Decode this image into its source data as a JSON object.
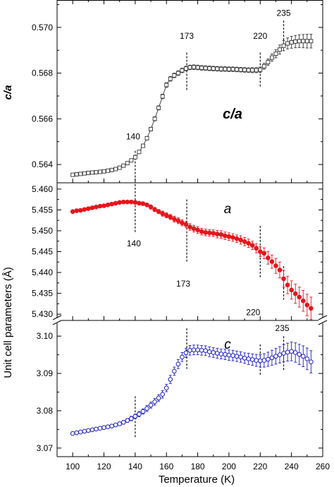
{
  "chart_data": [
    {
      "type": "scatter",
      "panel": "top",
      "ylabel": "c/a",
      "panel_label": "c/a",
      "ylim": [
        0.5632,
        0.5712
      ],
      "yticks": [
        "0.564",
        "0.566",
        "0.568",
        "0.570"
      ],
      "ytick_values": [
        0.564,
        0.566,
        0.568,
        0.57
      ],
      "marker": "open-square",
      "color": "#333333",
      "connected": true,
      "series": [
        {
          "x": [
            100,
            102.5,
            105,
            107.5,
            110,
            112.5,
            115,
            117.5,
            120,
            122.5,
            125,
            127.5,
            130,
            132.5,
            135,
            137.5,
            140,
            142.5,
            145,
            147.5,
            150,
            152.5,
            155,
            157.5,
            160,
            162.5,
            165,
            167.5,
            170,
            172.5,
            175,
            177.5,
            180,
            182.5,
            185,
            187.5,
            190,
            192.5,
            195,
            197.5,
            200,
            202.5,
            205,
            207.5,
            210,
            212.5,
            215,
            217.5,
            220,
            222.5,
            225,
            227.5,
            230,
            232.5,
            235,
            237.5,
            240,
            242.5,
            245,
            247.5,
            250,
            252.5
          ],
          "y": [
            0.56355,
            0.56357,
            0.56359,
            0.56361,
            0.56363,
            0.56365,
            0.56366,
            0.56368,
            0.5637,
            0.56373,
            0.56376,
            0.5638,
            0.56386,
            0.56395,
            0.56406,
            0.56418,
            0.56432,
            0.56455,
            0.56482,
            0.56515,
            0.56555,
            0.566,
            0.56648,
            0.56698,
            0.56748,
            0.56775,
            0.5679,
            0.568,
            0.56812,
            0.5682,
            0.56825,
            0.56826,
            0.56825,
            0.56823,
            0.56822,
            0.56821,
            0.5682,
            0.56819,
            0.56818,
            0.56818,
            0.56817,
            0.56817,
            0.56816,
            0.56815,
            0.56814,
            0.56813,
            0.56813,
            0.56813,
            0.56815,
            0.5683,
            0.56848,
            0.56868,
            0.56885,
            0.56903,
            0.5692,
            0.5693,
            0.56935,
            0.56938,
            0.5694,
            0.5694,
            0.5694,
            0.5694
          ],
          "err": [
            4e-05,
            4e-05,
            4e-05,
            4e-05,
            4e-05,
            4e-05,
            4e-05,
            4e-05,
            4e-05,
            4e-05,
            4e-05,
            5e-05,
            5e-05,
            5e-05,
            6e-05,
            6e-05,
            6e-05,
            7e-05,
            7e-05,
            8e-05,
            8e-05,
            9e-05,
            9e-05,
            0.0001,
            0.0001,
            0.0001,
            0.0001,
            0.0001,
            0.0001,
            0.0001,
            0.0001,
            0.0001,
            0.0001,
            0.0001,
            0.0001,
            0.0001,
            0.0001,
            0.0001,
            0.0001,
            0.0001,
            0.0001,
            0.0001,
            0.0001,
            0.0001,
            0.0001,
            0.0001,
            0.00011,
            0.00011,
            0.00012,
            0.00013,
            0.00014,
            0.00016,
            0.00018,
            0.0002,
            0.00022,
            0.00024,
            0.00026,
            0.00027,
            0.00028,
            0.00029,
            0.0003,
            0.0003
          ]
        }
      ],
      "annotations": [
        {
          "text": "140",
          "x": 140,
          "y": 0.5651
        },
        {
          "text": "173",
          "x": 173,
          "y": 0.5695
        },
        {
          "text": "220",
          "x": 220,
          "y": 0.5695
        },
        {
          "text": "235",
          "x": 235,
          "y": 0.5705
        }
      ],
      "vlines": [
        {
          "x": 140,
          "y_from": 0.5633,
          "y_to": 0.5646
        },
        {
          "x": 173,
          "y_from": 0.5672,
          "y_to": 0.5689
        },
        {
          "x": 220,
          "y_from": 0.5674,
          "y_to": 0.5689
        },
        {
          "x": 235,
          "y_from": 0.5691,
          "y_to": 0.5703
        }
      ]
    },
    {
      "type": "scatter",
      "panel": "middle",
      "panel_label": "a",
      "ylim": [
        5.4285,
        5.4615
      ],
      "yticks": [
        "5.430",
        "5.435",
        "5.440",
        "5.445",
        "5.450",
        "5.455",
        "5.460"
      ],
      "ytick_values": [
        5.43,
        5.435,
        5.44,
        5.445,
        5.45,
        5.455,
        5.46
      ],
      "marker": "filled-circle",
      "color": "#e8141b",
      "series": [
        {
          "x": [
            100,
            102.5,
            105,
            107.5,
            110,
            112.5,
            115,
            117.5,
            120,
            122.5,
            125,
            127.5,
            130,
            132.5,
            135,
            137.5,
            140,
            142.5,
            145,
            147.5,
            150,
            152.5,
            155,
            157.5,
            160,
            162.5,
            165,
            167.5,
            170,
            172.5,
            175,
            177.5,
            180,
            182.5,
            185,
            187.5,
            190,
            192.5,
            195,
            197.5,
            200,
            202.5,
            205,
            207.5,
            210,
            212.5,
            215,
            217.5,
            220,
            222.5,
            225,
            227.5,
            230,
            232.5,
            235,
            237.5,
            240,
            242.5,
            245,
            247.5,
            250,
            252.5
          ],
          "y": [
            5.4546,
            5.4548,
            5.4549,
            5.4551,
            5.4553,
            5.4555,
            5.4557,
            5.4559,
            5.456,
            5.4562,
            5.4564,
            5.4566,
            5.4568,
            5.4569,
            5.4569,
            5.4569,
            5.4568,
            5.4566,
            5.4565,
            5.4562,
            5.4557,
            5.4551,
            5.4546,
            5.4541,
            5.4537,
            5.4533,
            5.4528,
            5.4524,
            5.4519,
            5.4515,
            5.4509,
            5.4505,
            5.4502,
            5.4498,
            5.4496,
            5.4495,
            5.4494,
            5.4492,
            5.4491,
            5.4488,
            5.4486,
            5.4484,
            5.4481,
            5.4478,
            5.4474,
            5.447,
            5.4465,
            5.4458,
            5.445,
            5.4446,
            5.4435,
            5.4426,
            5.4416,
            5.4406,
            5.4385,
            5.437,
            5.4358,
            5.4349,
            5.4341,
            5.4332,
            5.4322,
            5.4314
          ],
          "err": [
            0.0003,
            0.0003,
            0.0003,
            0.0003,
            0.0003,
            0.0003,
            0.0003,
            0.0003,
            0.0003,
            0.0003,
            0.0003,
            0.0003,
            0.0003,
            0.0003,
            0.0003,
            0.0003,
            0.0003,
            0.0004,
            0.0004,
            0.0004,
            0.0005,
            0.0005,
            0.0005,
            0.0006,
            0.0006,
            0.0006,
            0.0007,
            0.0007,
            0.0007,
            0.0007,
            0.0008,
            0.0008,
            0.0008,
            0.0008,
            0.0008,
            0.0008,
            0.0008,
            0.0009,
            0.0009,
            0.0009,
            0.0009,
            0.0009,
            0.0009,
            0.001,
            0.001,
            0.001,
            0.001,
            0.0011,
            0.0012,
            0.0013,
            0.0015,
            0.0016,
            0.0018,
            0.0019,
            0.002,
            0.0021,
            0.0022,
            0.0023,
            0.0024,
            0.0025,
            0.0026,
            0.0027
          ]
        }
      ],
      "annotations": [
        {
          "text": "140",
          "x": 140,
          "y": 5.4463
        },
        {
          "text": "173",
          "x": 173,
          "y": 5.4366
        },
        {
          "text": "220",
          "x": 220,
          "y": 5.4298
        },
        {
          "text": "235",
          "x": 235,
          "y": 5.426
        }
      ],
      "vlines": [
        {
          "x": 140,
          "y_from": 5.4495,
          "y_to": 5.4612
        },
        {
          "x": 173,
          "y_from": 5.4425,
          "y_to": 5.4575
        },
        {
          "x": 220,
          "y_from": 5.4385,
          "y_to": 5.4512
        },
        {
          "x": 235,
          "y_from": 5.4335,
          "y_to": 5.4415
        }
      ]
    },
    {
      "type": "scatter",
      "panel": "bottom",
      "panel_label": "c",
      "ylim": [
        3.0677,
        3.1042
      ],
      "yticks": [
        "3.07",
        "3.08",
        "3.09",
        "3.10"
      ],
      "ytick_values": [
        3.07,
        3.08,
        3.09,
        3.1
      ],
      "marker": "open-circle",
      "color": "#1f1fc8",
      "series": [
        {
          "x": [
            100,
            102.5,
            105,
            107.5,
            110,
            112.5,
            115,
            117.5,
            120,
            122.5,
            125,
            127.5,
            130,
            132.5,
            135,
            137.5,
            140,
            142.5,
            145,
            147.5,
            150,
            152.5,
            155,
            157.5,
            160,
            162.5,
            165,
            167.5,
            170,
            172.5,
            175,
            177.5,
            180,
            182.5,
            185,
            187.5,
            190,
            192.5,
            195,
            197.5,
            200,
            202.5,
            205,
            207.5,
            210,
            212.5,
            215,
            217.5,
            220,
            222.5,
            225,
            227.5,
            230,
            232.5,
            235,
            237.5,
            240,
            242.5,
            245,
            247.5,
            250,
            252.5
          ],
          "y": [
            3.0739,
            3.0741,
            3.0743,
            3.0745,
            3.0747,
            3.0749,
            3.0751,
            3.0753,
            3.0755,
            3.0757,
            3.0759,
            3.0762,
            3.0765,
            3.0769,
            3.0774,
            3.0779,
            3.0785,
            3.0791,
            3.0798,
            3.0806,
            3.0815,
            3.0824,
            3.0834,
            3.0844,
            3.0861,
            3.0884,
            3.0906,
            3.0925,
            3.0944,
            3.0955,
            3.0962,
            3.0963,
            3.0963,
            3.0962,
            3.0961,
            3.0958,
            3.0956,
            3.0954,
            3.0952,
            3.0951,
            3.0949,
            3.0948,
            3.0946,
            3.0944,
            3.0941,
            3.0939,
            3.0937,
            3.0935,
            3.0934,
            3.0935,
            3.0938,
            3.0942,
            3.0946,
            3.095,
            3.0954,
            3.0957,
            3.0959,
            3.0956,
            3.0951,
            3.0946,
            3.0939,
            3.0931
          ],
          "err": [
            0.0004,
            0.0004,
            0.0004,
            0.0004,
            0.0004,
            0.0004,
            0.0004,
            0.0004,
            0.0004,
            0.0004,
            0.0004,
            0.0004,
            0.0005,
            0.0005,
            0.0005,
            0.0006,
            0.0006,
            0.0007,
            0.0007,
            0.0008,
            0.0008,
            0.0009,
            0.0009,
            0.001,
            0.001,
            0.0011,
            0.0011,
            0.0012,
            0.0012,
            0.0012,
            0.0013,
            0.0013,
            0.0013,
            0.0013,
            0.0013,
            0.0013,
            0.0013,
            0.0013,
            0.0013,
            0.0014,
            0.0014,
            0.0014,
            0.0014,
            0.0014,
            0.0014,
            0.0015,
            0.0015,
            0.0016,
            0.0017,
            0.0018,
            0.0019,
            0.002,
            0.0021,
            0.0022,
            0.0023,
            0.0024,
            0.0025,
            0.0026,
            0.0027,
            0.0028,
            0.0029,
            0.003
          ]
        }
      ],
      "vlines": [
        {
          "x": 140,
          "y_from": 3.0728,
          "y_to": 3.0839
        },
        {
          "x": 173,
          "y_from": 3.0912,
          "y_to": 3.1021
        },
        {
          "x": 220,
          "y_from": 3.0893,
          "y_to": 3.0978
        },
        {
          "x": 235,
          "y_from": 3.0906,
          "y_to": 3.1
        }
      ]
    }
  ],
  "shared_axes": {
    "xlabel": "Temperature  (K)",
    "xlim": [
      90,
      260
    ],
    "xticks": [
      "100",
      "120",
      "140",
      "160",
      "180",
      "200",
      "220",
      "240",
      "260"
    ],
    "xtick_values": [
      100,
      120,
      140,
      160,
      180,
      200,
      220,
      240,
      260
    ],
    "left_ylabel_lower": "Unit cell parameters  (Å)",
    "axis_break": true
  }
}
